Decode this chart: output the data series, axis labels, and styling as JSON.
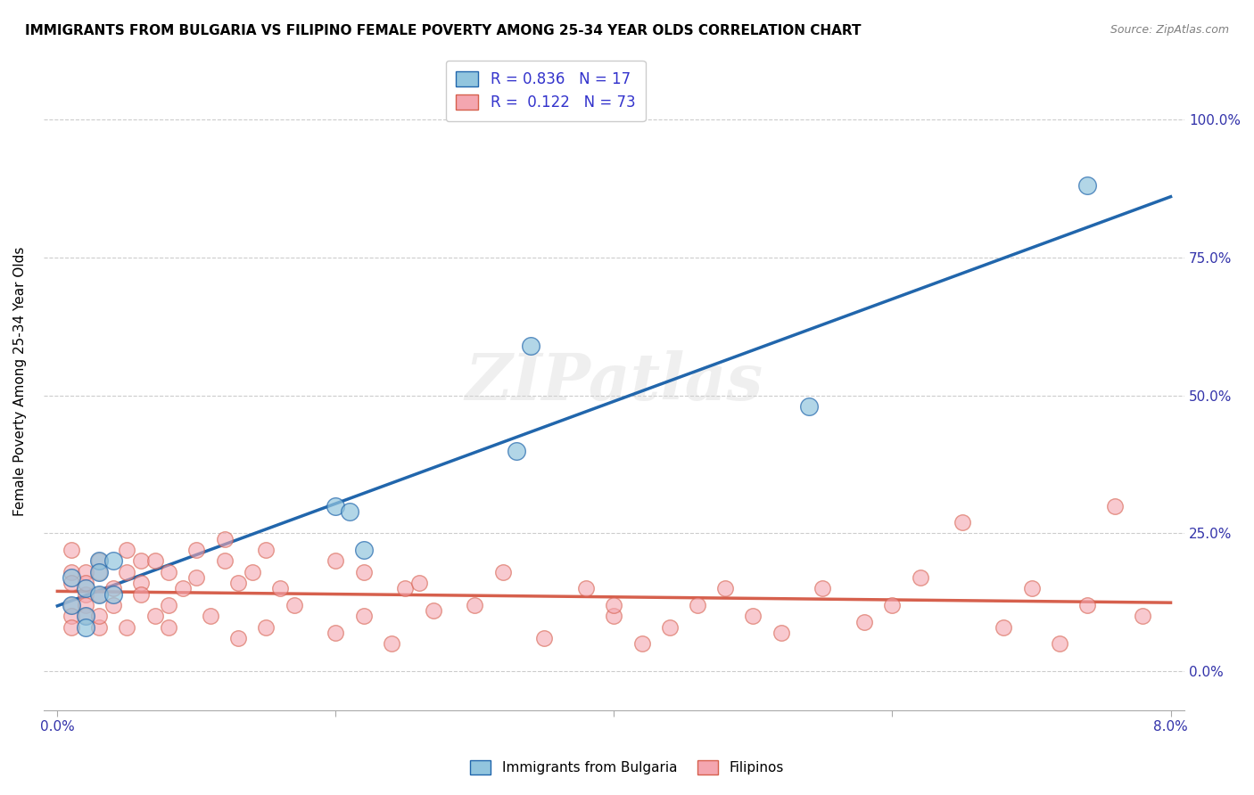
{
  "title": "IMMIGRANTS FROM BULGARIA VS FILIPINO FEMALE POVERTY AMONG 25-34 YEAR OLDS CORRELATION CHART",
  "source": "Source: ZipAtlas.com",
  "xlabel": "",
  "ylabel": "Female Poverty Among 25-34 Year Olds",
  "xlim": [
    0.0,
    0.08
  ],
  "ylim": [
    -0.05,
    1.1
  ],
  "xticks": [
    0.0,
    0.02,
    0.04,
    0.06,
    0.08
  ],
  "xtick_labels": [
    "0.0%",
    "",
    "",
    "",
    "8.0%"
  ],
  "ytick_labels": [
    "0.0%",
    "25.0%",
    "50.0%",
    "75.0%",
    "100.0%"
  ],
  "yticks": [
    0.0,
    0.25,
    0.5,
    0.75,
    1.0
  ],
  "R_blue": 0.836,
  "N_blue": 17,
  "R_pink": 0.122,
  "N_pink": 73,
  "blue_color": "#92C5DE",
  "pink_color": "#F4A6B0",
  "blue_line_color": "#2166AC",
  "pink_line_color": "#D6604D",
  "watermark": "ZIPatlas",
  "legend_label_blue": "Immigrants from Bulgaria",
  "legend_label_pink": "Filipinos",
  "blue_scatter_x": [
    0.001,
    0.001,
    0.002,
    0.002,
    0.002,
    0.003,
    0.003,
    0.003,
    0.004,
    0.004,
    0.02,
    0.021,
    0.022,
    0.033,
    0.034,
    0.054,
    0.074
  ],
  "blue_scatter_y": [
    0.17,
    0.12,
    0.15,
    0.1,
    0.08,
    0.2,
    0.18,
    0.14,
    0.2,
    0.14,
    0.3,
    0.29,
    0.22,
    0.4,
    0.59,
    0.48,
    0.88
  ],
  "pink_scatter_x": [
    0.001,
    0.001,
    0.001,
    0.001,
    0.001,
    0.001,
    0.002,
    0.002,
    0.002,
    0.002,
    0.002,
    0.003,
    0.003,
    0.003,
    0.003,
    0.003,
    0.004,
    0.004,
    0.005,
    0.005,
    0.005,
    0.006,
    0.006,
    0.006,
    0.007,
    0.007,
    0.008,
    0.008,
    0.008,
    0.009,
    0.01,
    0.01,
    0.011,
    0.012,
    0.012,
    0.013,
    0.013,
    0.014,
    0.015,
    0.015,
    0.016,
    0.017,
    0.02,
    0.02,
    0.022,
    0.022,
    0.024,
    0.025,
    0.026,
    0.027,
    0.03,
    0.032,
    0.035,
    0.038,
    0.04,
    0.04,
    0.042,
    0.044,
    0.046,
    0.048,
    0.05,
    0.052,
    0.055,
    0.058,
    0.06,
    0.062,
    0.065,
    0.068,
    0.07,
    0.072,
    0.074,
    0.076,
    0.078
  ],
  "pink_scatter_y": [
    0.18,
    0.12,
    0.1,
    0.16,
    0.22,
    0.08,
    0.18,
    0.14,
    0.12,
    0.1,
    0.16,
    0.2,
    0.18,
    0.08,
    0.14,
    0.1,
    0.15,
    0.12,
    0.22,
    0.18,
    0.08,
    0.2,
    0.16,
    0.14,
    0.1,
    0.2,
    0.18,
    0.12,
    0.08,
    0.15,
    0.22,
    0.17,
    0.1,
    0.24,
    0.2,
    0.16,
    0.06,
    0.18,
    0.22,
    0.08,
    0.15,
    0.12,
    0.2,
    0.07,
    0.18,
    0.1,
    0.05,
    0.15,
    0.16,
    0.11,
    0.12,
    0.18,
    0.06,
    0.15,
    0.1,
    0.12,
    0.05,
    0.08,
    0.12,
    0.15,
    0.1,
    0.07,
    0.15,
    0.09,
    0.12,
    0.17,
    0.27,
    0.08,
    0.15,
    0.05,
    0.12,
    0.3,
    0.1
  ]
}
